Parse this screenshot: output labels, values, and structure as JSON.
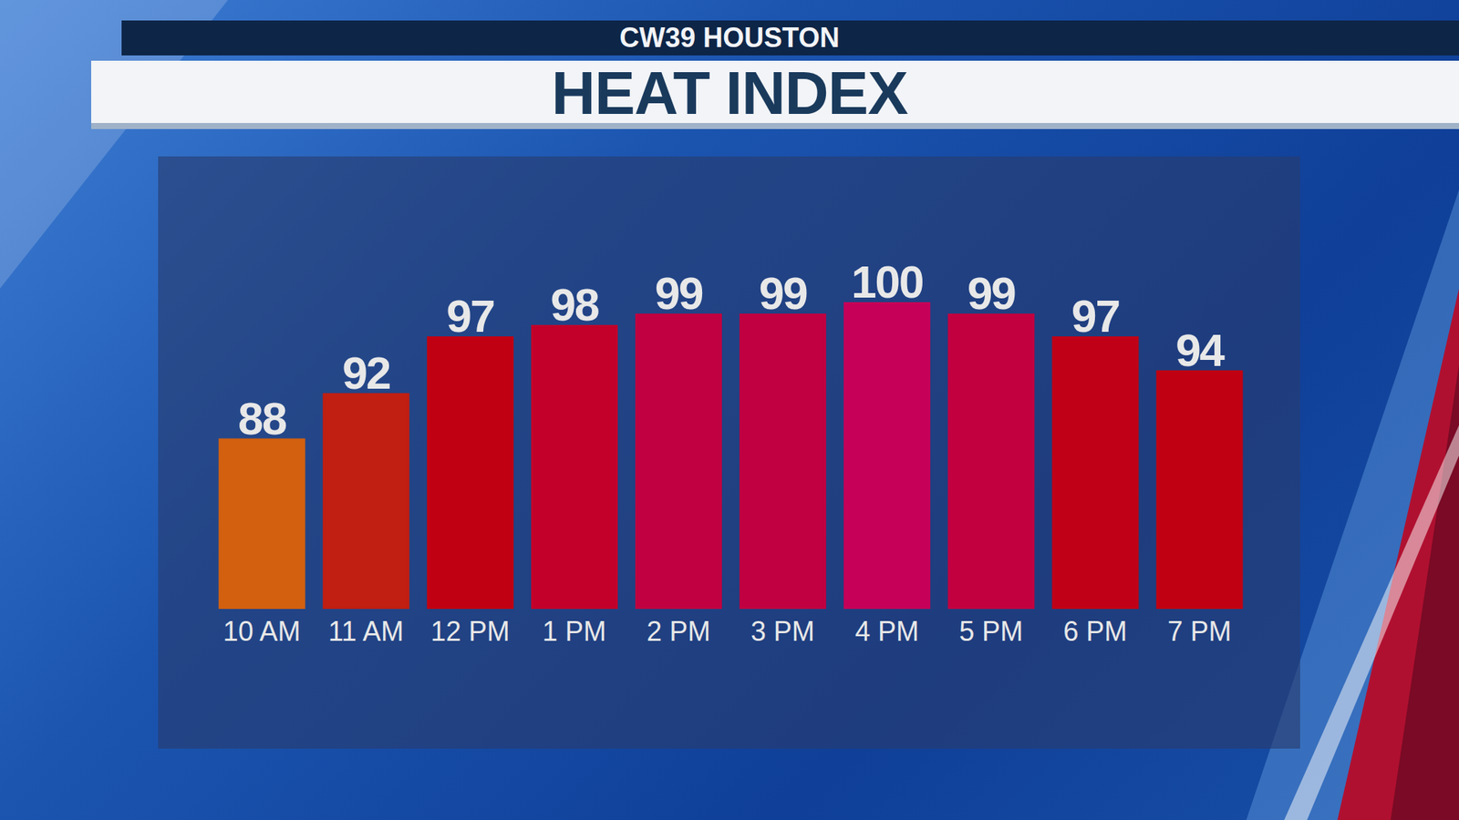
{
  "chart_data": {
    "type": "bar",
    "title": "HEAT INDEX",
    "subtitle": "CW39 HOUSTON",
    "categories": [
      "10 AM",
      "11 AM",
      "12 PM",
      "1 PM",
      "2 PM",
      "3 PM",
      "4 PM",
      "5 PM",
      "6 PM",
      "7 PM"
    ],
    "values": [
      88,
      92,
      97,
      98,
      99,
      99,
      100,
      99,
      97,
      94
    ],
    "colors": [
      "#d2600f",
      "#c01f12",
      "#c00012",
      "#c2002a",
      "#c00040",
      "#c00040",
      "#c60058",
      "#c20040",
      "#c00016",
      "#c00012"
    ],
    "ylim": [
      73,
      100
    ],
    "data_labels": true,
    "tick_labels": "x",
    "grid": false
  }
}
